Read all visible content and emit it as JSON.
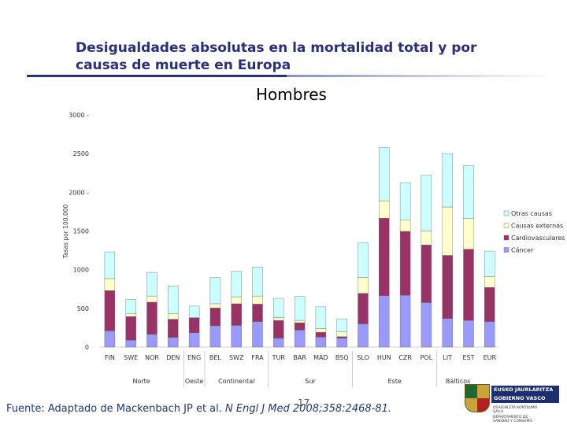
{
  "slide": {
    "title": "Desigualdades absolutas en la mortalidad total y por causas de muerte en Europa",
    "subtitle": "Hombres",
    "source_prefix": "Fuente: Adaptado de Mackenbach JP et al.",
    "source_journal": "N Engl J Med 2008;358:2468-81.",
    "slide_number": "17",
    "logo": {
      "line1": "EUSKO JAURLARITZA",
      "line2": "GOBIERNO VASCO",
      "dept1": "OSASUN ETA KONTSUMO SAILA",
      "dept2": "DEPARTAMENTO DE SANIDAD Y CONSUMO"
    }
  },
  "chart_data": {
    "type": "bar",
    "stacked": true,
    "title": "Hombres",
    "ylabel": "Tasas por 100.000",
    "ylim": [
      0,
      3000
    ],
    "yticks": [
      "0",
      "500",
      "1000",
      "1500",
      "2000 -",
      "2500",
      "3000 -"
    ],
    "ytick_values": [
      0,
      500,
      1000,
      1500,
      2000,
      2500,
      3000
    ],
    "categories": [
      "FIN",
      "SWE",
      "NOR",
      "DEN",
      "ENG",
      "BEL",
      "SWZ",
      "FRA",
      "TUR",
      "BAR",
      "MAD",
      "BSQ",
      "SLO",
      "HUN",
      "CZR",
      "POL",
      "LIT",
      "EST",
      "EUR"
    ],
    "groups": [
      {
        "label": "Norte",
        "categories": [
          "FIN",
          "SWE",
          "NOR",
          "DEN"
        ]
      },
      {
        "label": "Oeste",
        "categories": [
          "ENG"
        ]
      },
      {
        "label": "Continental",
        "categories": [
          "BEL",
          "SWZ",
          "FRA"
        ]
      },
      {
        "label": "Sur",
        "categories": [
          "TUR",
          "BAR",
          "MAD",
          "BSQ"
        ]
      },
      {
        "label": "Este",
        "categories": [
          "SLO",
          "HUN",
          "CZR",
          "POL"
        ]
      },
      {
        "label": "Bálticos",
        "categories": [
          "LIT",
          "EST"
        ]
      }
    ],
    "legend_position": "right",
    "series": [
      {
        "name": "Cáncer",
        "color": "#9999ff",
        "values": [
          210,
          90,
          165,
          125,
          185,
          275,
          280,
          330,
          115,
          220,
          130,
          115,
          300,
          665,
          670,
          575,
          370,
          345,
          330
        ]
      },
      {
        "name": "Cardiovasculares",
        "color": "#993366",
        "values": [
          520,
          305,
          415,
          235,
          195,
          230,
          280,
          225,
          230,
          95,
          60,
          20,
          395,
          1000,
          825,
          745,
          815,
          920,
          440
        ]
      },
      {
        "name": "Causas externas",
        "color": "#ffffcc",
        "values": [
          155,
          40,
          80,
          70,
          0,
          55,
          90,
          105,
          35,
          30,
          50,
          60,
          205,
          225,
          145,
          180,
          625,
          395,
          140
        ]
      },
      {
        "name": "Otras causas",
        "color": "#ccffff",
        "values": [
          345,
          180,
          305,
          360,
          150,
          340,
          330,
          375,
          250,
          310,
          280,
          170,
          445,
          690,
          485,
          720,
          690,
          685,
          330
        ]
      }
    ]
  }
}
